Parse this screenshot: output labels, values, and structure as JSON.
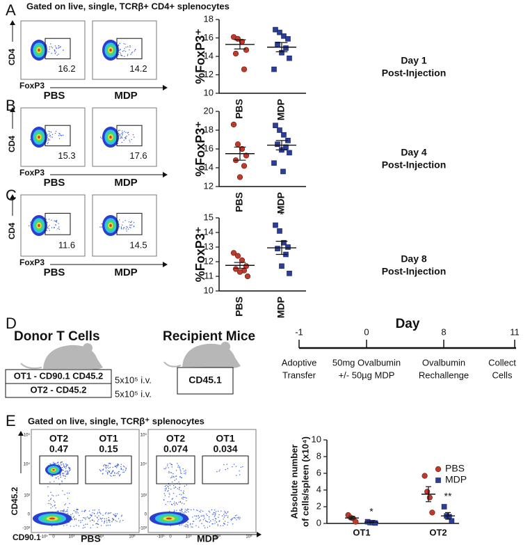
{
  "panel_labels": [
    "A",
    "B",
    "C",
    "D",
    "E"
  ],
  "flow_top": {
    "header": "Gated on live, single, TCRβ+ CD4+ splenocytes",
    "y_axis": "CD4",
    "x_axis": "FoxP3",
    "conditions": [
      "PBS",
      "MDP"
    ],
    "rows": [
      [
        "16.2",
        "14.2"
      ],
      [
        "15.3",
        "17.6"
      ],
      [
        "11.6",
        "14.5"
      ]
    ]
  },
  "chart_data": [
    {
      "type": "dot",
      "y_label": [
        "%FoxP3⁺"
      ],
      "categories": [
        "PBS",
        "MDP"
      ],
      "colors": [
        "#c0392b",
        "#2c3e99"
      ],
      "markers": [
        "circle",
        "square"
      ],
      "values": [
        [
          16.1,
          15.9,
          15.6,
          14.7,
          14.3,
          12.6
        ],
        [
          16.9,
          16.6,
          16.2,
          15.9,
          15.3,
          14.9,
          14.4,
          13.8,
          12.6
        ]
      ],
      "means": [
        15.3,
        15.0
      ],
      "sems": [
        0.5,
        0.5
      ],
      "ylim": [
        10,
        18
      ],
      "yticks": [
        10,
        12,
        14,
        16,
        18
      ],
      "note": [
        "Day 1",
        "Post-Injection"
      ]
    },
    {
      "type": "dot",
      "y_label": [
        "%FoxP3⁺"
      ],
      "categories": [
        "PBS",
        "MDP"
      ],
      "colors": [
        "#c0392b",
        "#2c3e99"
      ],
      "markers": [
        "circle",
        "square"
      ],
      "values": [
        [
          18.6,
          16.5,
          16.0,
          15.3,
          14.8,
          14.2,
          13.0
        ],
        [
          18.5,
          18.0,
          17.5,
          16.9,
          16.5,
          16.2,
          15.9,
          15.6,
          14.5,
          13.6
        ]
      ],
      "means": [
        15.5,
        16.4
      ],
      "sems": [
        0.7,
        0.5
      ],
      "ylim": [
        12,
        20
      ],
      "yticks": [
        12,
        14,
        16,
        18,
        20
      ],
      "note": [
        "Day 4",
        "Post-Injection"
      ]
    },
    {
      "type": "dot",
      "y_label": [
        "%FoxP3⁺"
      ],
      "categories": [
        "PBS",
        "MDP"
      ],
      "colors": [
        "#c0392b",
        "#2c3e99"
      ],
      "markers": [
        "circle",
        "square"
      ],
      "values": [
        [
          12.6,
          12.4,
          12.1,
          11.7,
          11.5,
          11.4,
          11.3,
          11.0
        ],
        [
          14.5,
          14.1,
          13.3,
          13.0,
          12.9,
          12.5,
          11.7,
          11.2
        ]
      ],
      "means": [
        11.75,
        12.95
      ],
      "sems": [
        0.2,
        0.45
      ],
      "ylim": [
        10,
        15
      ],
      "yticks": [
        10,
        11,
        12,
        13,
        14,
        15
      ],
      "note": [
        "Day 8",
        "Post-Injection"
      ],
      "annotations": [
        {
          "category": "MDP",
          "text": "*"
        }
      ]
    },
    {
      "type": "dot",
      "y_label": [
        "Absolute number",
        "of cells/spleen (x10⁴)"
      ],
      "categories": [
        "OT1",
        "OT2"
      ],
      "series": [
        {
          "name": "PBS",
          "color": "#c0392b",
          "marker": "circle",
          "values": [
            [
              1.0,
              0.7,
              0.6,
              0.2
            ],
            [
              5.7,
              3.8,
              3.1,
              1.3
            ]
          ],
          "means": [
            0.65,
            3.5
          ],
          "sems": [
            0.15,
            0.9
          ]
        },
        {
          "name": "MDP",
          "color": "#2c3e99",
          "marker": "square",
          "values": [
            [
              0.2,
              0.1,
              0.1,
              0.05
            ],
            [
              2.0,
              0.9,
              0.8,
              0.3
            ]
          ],
          "means": [
            0.15,
            0.9
          ],
          "sems": [
            0.05,
            0.4
          ]
        }
      ],
      "ylim": [
        0,
        10
      ],
      "yticks": [
        0,
        2,
        4,
        6,
        8,
        10
      ],
      "legend": "upper right",
      "annotations": [
        {
          "category": "OT1",
          "series": "MDP",
          "text": "*"
        },
        {
          "category": "OT2",
          "series": "MDP",
          "text": "**"
        }
      ]
    }
  ],
  "diagram": {
    "donor_title": "Donor T Cells",
    "donor_lines": [
      "OT1 - CD90.1 CD45.2",
      "OT2 - CD45.2"
    ],
    "doses": [
      "5x10⁵ i.v.",
      "5x10⁵ i.v."
    ],
    "recipient_title": "Recipient Mice",
    "recipient_box": "CD45.1",
    "timeline": {
      "title": "Day",
      "points": [
        {
          "day": "-1",
          "event": [
            "Adoptive",
            "Transfer"
          ]
        },
        {
          "day": "0",
          "event": [
            "50mg Ovalbumin",
            "+/- 50µg MDP"
          ]
        },
        {
          "day": "8",
          "event": [
            "Ovalbumin",
            "Rechallenge"
          ]
        },
        {
          "day": "11",
          "event": [
            "Collect",
            "Cells"
          ]
        }
      ]
    }
  },
  "flow_e": {
    "header": "Gated on live, single, TCRβ⁺ splenocytes",
    "y_axis": "CD45.2",
    "x_axis": "CD90.1",
    "y_ticks": [
      "10⁵",
      "10⁴",
      "10³",
      "0",
      "-10³"
    ],
    "x_ticks": [
      "-10³",
      "0",
      "10³",
      "10⁴",
      "10⁵"
    ],
    "plots": [
      {
        "condition": "PBS",
        "gates": [
          {
            "name": "OT2",
            "value": "0.47"
          },
          {
            "name": "OT1",
            "value": "0.15"
          }
        ]
      },
      {
        "condition": "MDP",
        "gates": [
          {
            "name": "OT2",
            "value": "0.074"
          },
          {
            "name": "OT1",
            "value": "0.034"
          }
        ]
      }
    ]
  }
}
